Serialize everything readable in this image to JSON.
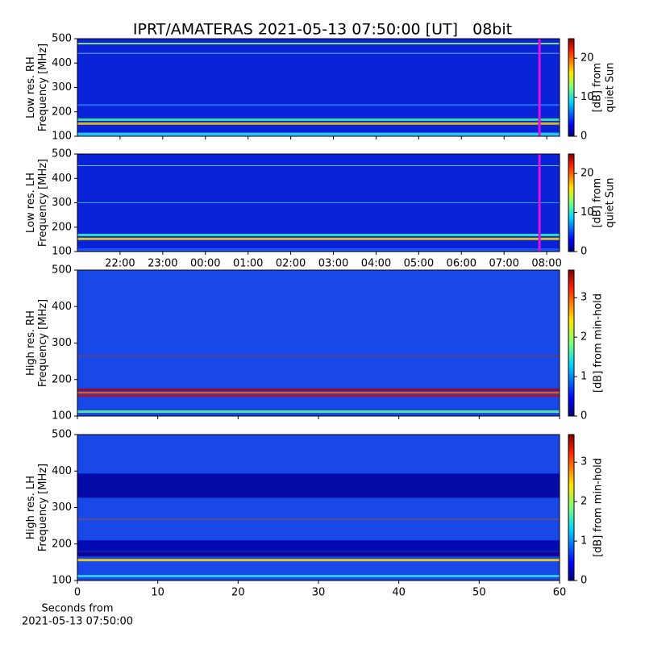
{
  "chart_data": [
    {
      "type": "heatmap",
      "title": "IPRT/AMATERAS 2021-05-13 07:50:00 [UT]   08bit",
      "ylabel": [
        "Low res. RH",
        "Frequency [MHz]"
      ],
      "ylim": [
        100,
        500
      ],
      "yticks": [
        100,
        200,
        300,
        400,
        500
      ],
      "xlim": [
        21.0,
        32.3
      ],
      "xticks": [
        22,
        23,
        24,
        25,
        26,
        27,
        28,
        29,
        30,
        31,
        32
      ],
      "show_xtick_labels": false,
      "marker_x": 31.83,
      "marker_color": "#e010e0",
      "colorbar_label": [
        "[dB] from",
        "quiet Sun"
      ],
      "clim": [
        0,
        25
      ],
      "cticks": [
        0,
        10,
        20
      ]
    },
    {
      "type": "heatmap",
      "ylabel": [
        "Low res. LH",
        "Frequency [MHz]"
      ],
      "ylim": [
        100,
        500
      ],
      "yticks": [
        100,
        200,
        300,
        400,
        500
      ],
      "xlim": [
        21.0,
        32.3
      ],
      "xticks": [
        {
          "value": 22,
          "label": "22:00"
        },
        {
          "value": 23,
          "label": "23:00"
        },
        {
          "value": 24,
          "label": "00:00"
        },
        {
          "value": 25,
          "label": "01:00"
        },
        {
          "value": 26,
          "label": "02:00"
        },
        {
          "value": 27,
          "label": "03:00"
        },
        {
          "value": 28,
          "label": "04:00"
        },
        {
          "value": 29,
          "label": "05:00"
        },
        {
          "value": 30,
          "label": "06:00"
        },
        {
          "value": 31,
          "label": "07:00"
        },
        {
          "value": 32,
          "label": "08:00"
        }
      ],
      "show_xtick_labels": true,
      "marker_x": 31.83,
      "marker_color": "#e010e0",
      "colorbar_label": [
        "[dB] from",
        "quiet Sun"
      ],
      "clim": [
        0,
        25
      ],
      "cticks": [
        0,
        10,
        20
      ]
    },
    {
      "type": "heatmap",
      "ylabel": [
        "High res. RH",
        "Frequency [MHz]"
      ],
      "ylim": [
        100,
        500
      ],
      "yticks": [
        100,
        200,
        300,
        400,
        500
      ],
      "xlim": [
        0,
        60
      ],
      "xticks": [
        0,
        10,
        20,
        30,
        40,
        50,
        60
      ],
      "show_xtick_labels": false,
      "colorbar_label": [
        "[dB] from min-hold"
      ],
      "clim": [
        0,
        3.7
      ],
      "cticks": [
        0,
        1,
        2,
        3
      ]
    },
    {
      "type": "heatmap",
      "ylabel": [
        "High res. LH",
        "Frequency [MHz]"
      ],
      "ylim": [
        100,
        500
      ],
      "yticks": [
        100,
        200,
        300,
        400,
        500
      ],
      "xlim": [
        0,
        60
      ],
      "xticks": [
        0,
        10,
        20,
        30,
        40,
        50,
        60
      ],
      "show_xtick_labels": true,
      "xlabel": [
        "Seconds from",
        "2021-05-13 07:50:00"
      ],
      "colorbar_label": [
        "[dB] from min-hold"
      ],
      "clim": [
        0,
        3.7
      ],
      "cticks": [
        0,
        1,
        2,
        3
      ]
    }
  ]
}
